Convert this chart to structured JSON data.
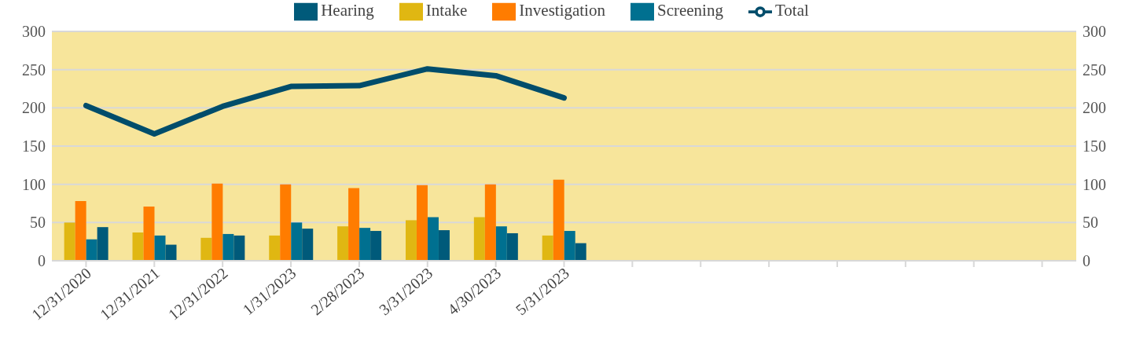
{
  "chart_data": {
    "type": "bar",
    "categories": [
      "12/31/2020",
      "12/31/2021",
      "12/31/2022",
      "1/31/2023",
      "2/28/2023",
      "3/31/2023",
      "4/30/2023",
      "5/31/2023",
      null,
      null,
      null,
      null,
      null,
      null,
      null
    ],
    "series": [
      {
        "name": "Intake",
        "color": "#e0b712",
        "values": [
          50,
          37,
          30,
          33,
          45,
          53,
          57,
          33,
          null,
          null,
          null,
          null,
          null,
          null,
          null
        ]
      },
      {
        "name": "Investigation",
        "color": "#ff7c00",
        "values": [
          78,
          71,
          101,
          100,
          95,
          99,
          100,
          106,
          null,
          null,
          null,
          null,
          null,
          null,
          null
        ]
      },
      {
        "name": "Screening",
        "color": "#007090",
        "values": [
          28,
          33,
          35,
          50,
          43,
          57,
          45,
          39,
          null,
          null,
          null,
          null,
          null,
          null,
          null
        ]
      },
      {
        "name": "Hearing",
        "color": "#005a7a",
        "values": [
          44,
          21,
          33,
          42,
          39,
          40,
          36,
          23,
          null,
          null,
          null,
          null,
          null,
          null,
          null
        ]
      },
      {
        "name": "Total",
        "type": "line",
        "color": "#014d6b",
        "values": [
          203,
          166,
          202,
          228,
          229,
          251,
          242,
          213,
          null,
          null,
          null,
          null,
          null,
          null,
          null
        ]
      }
    ],
    "ylim": [
      0,
      300
    ],
    "yticks": [
      0,
      50,
      100,
      150,
      200,
      250,
      300
    ],
    "y2lim": [
      0,
      300
    ],
    "y2ticks": [
      0,
      50,
      100,
      150,
      200,
      250,
      300
    ],
    "grid": "y",
    "legend": "top",
    "marker": "none",
    "line_style": "solid"
  }
}
